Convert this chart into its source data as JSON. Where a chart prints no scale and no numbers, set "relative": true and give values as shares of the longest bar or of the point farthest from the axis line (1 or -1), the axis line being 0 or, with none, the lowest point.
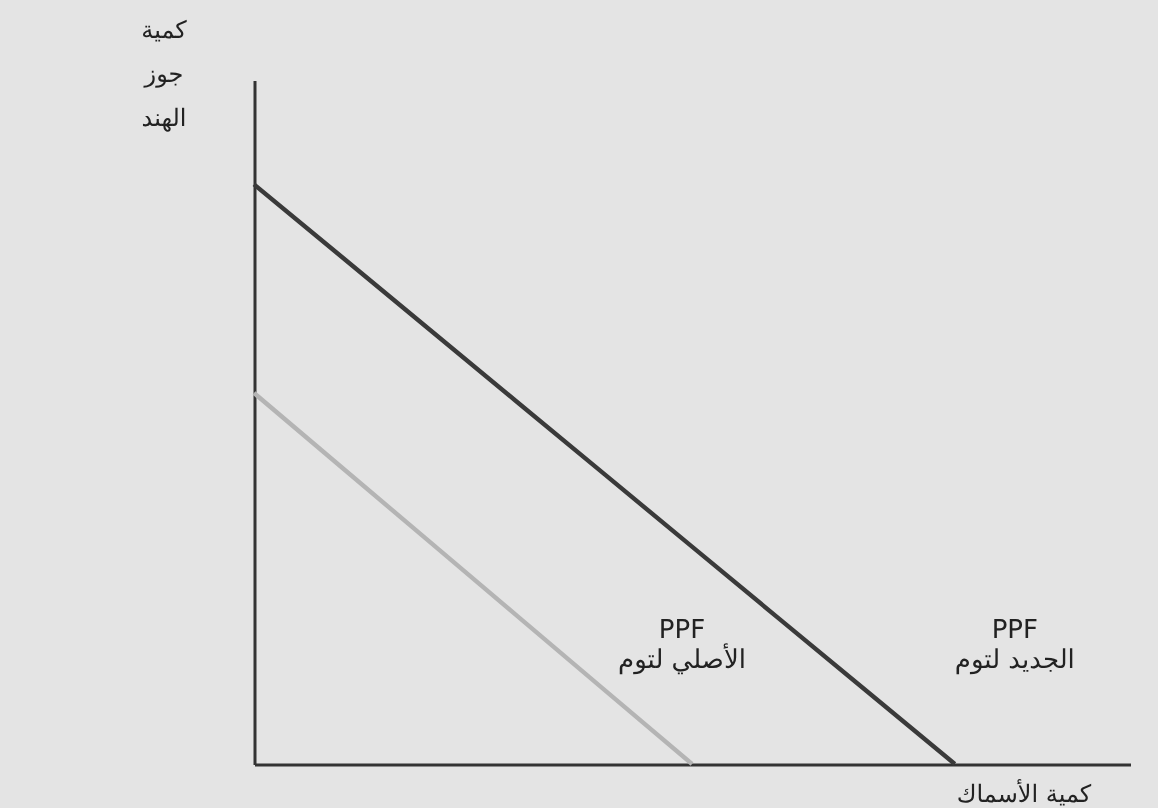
{
  "chart_data": {
    "type": "line",
    "relative": true,
    "xlabel": "كمية الأسماك",
    "ylabel": "كمية جوز الهند",
    "categories": [
      null,
      null,
      null,
      null,
      null,
      null,
      null,
      null,
      null,
      null,
      null
    ],
    "series": [
      {
        "name": "PPF الجديد لتوم",
        "color": "#3a3a3a",
        "values": [
          1,
          0.875,
          0.75,
          0.625,
          0.5,
          0.375,
          0.25,
          0.125,
          0,
          null,
          null
        ]
      },
      {
        "name": "PPF الأصلي لتوم",
        "color": "#b4b4b4",
        "values": [
          0.64,
          0.512,
          0.384,
          0.256,
          0.128,
          0,
          null,
          null,
          null,
          null,
          null
        ]
      }
    ],
    "grid": false,
    "marker": "none",
    "line_style": "solid"
  }
}
